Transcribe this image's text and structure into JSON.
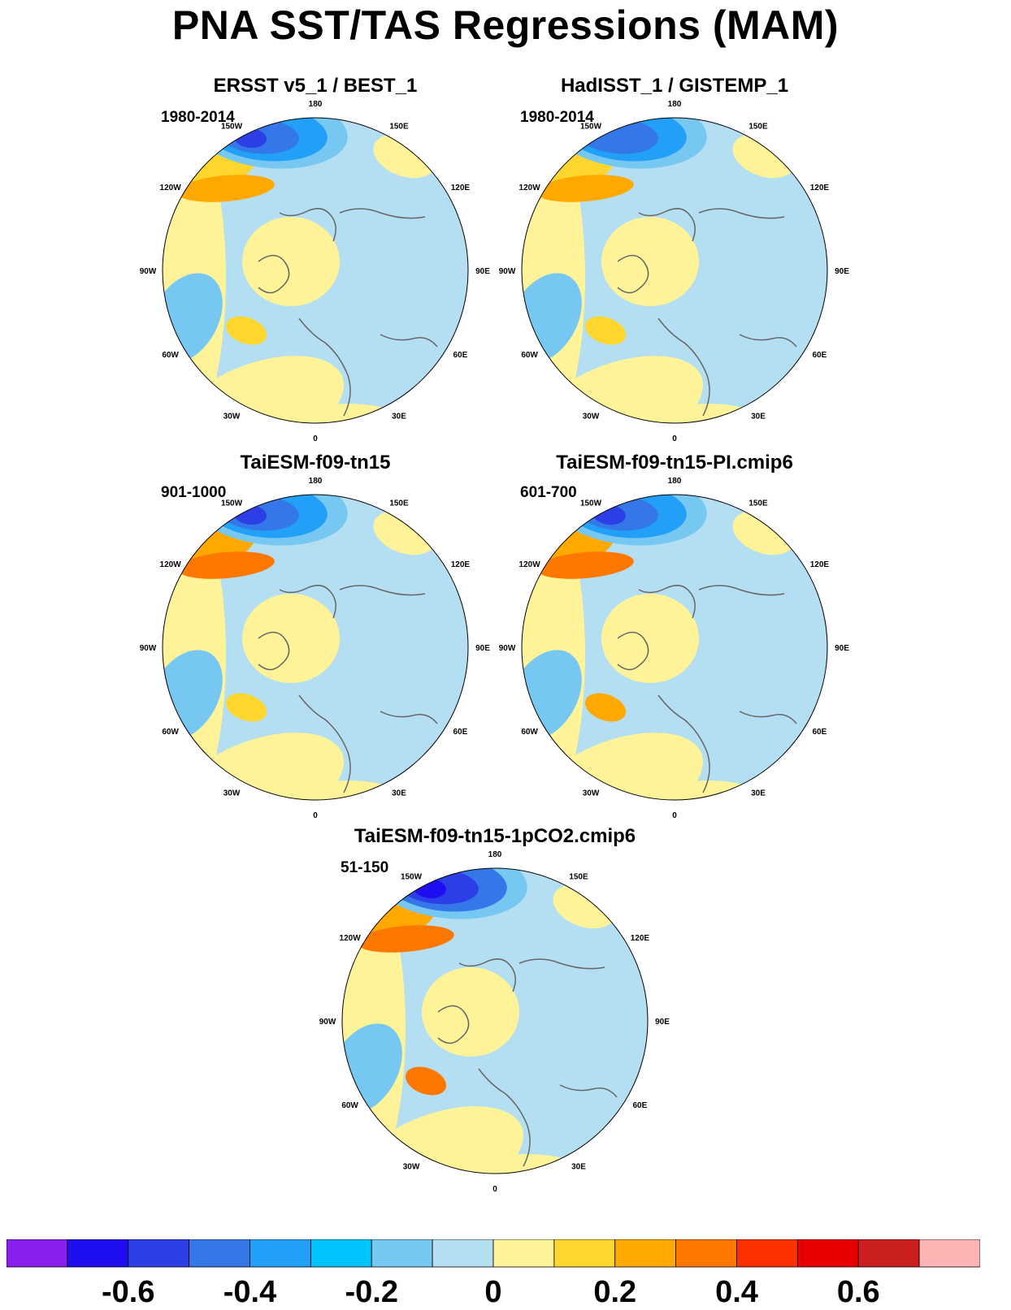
{
  "title": "PNA SST/TAS Regressions (MAM)",
  "panels": [
    {
      "title": "ERSST v5_1 / BEST_1",
      "period": "1980-2014"
    },
    {
      "title": "HadISST_1 / GISTEMP_1",
      "period": "1980-2014"
    },
    {
      "title": "TaiESM-f09-tn15",
      "period": "901-1000"
    },
    {
      "title": "TaiESM-f09-tn15-PI.cmip6",
      "period": "601-700"
    },
    {
      "title": "TaiESM-f09-tn15-1pCO2.cmip6",
      "period": "51-150"
    }
  ],
  "longitude_labels": {
    "180": "180",
    "150E": "150E",
    "120E": "120E",
    "90E": "90E",
    "60E": "60E",
    "30E": "30E",
    "0": "0",
    "30W": "30W",
    "60W": "60W",
    "90W": "90W",
    "120W": "120W",
    "150W": "150W"
  },
  "colorbar": {
    "colors": [
      "#8a1ff0",
      "#1f0ef0",
      "#2c3fe6",
      "#3477e8",
      "#22a0f8",
      "#00c4fc",
      "#76c8f2",
      "#b4def2",
      "#fef398",
      "#fed62e",
      "#fea800",
      "#fe7800",
      "#fe3000",
      "#e80000",
      "#cb1f1f",
      "#feb4b4"
    ],
    "tick_labels": [
      "-0.6",
      "-0.4",
      "-0.2",
      "0",
      "0.2",
      "0.4",
      "0.6"
    ]
  },
  "map_palette": {
    "ocean_neutral_negative": "#b4def2",
    "neutral_positive": "#fef398",
    "weak_negative": "#76c8f2",
    "moderate_negative": "#22a0f8",
    "strong_negative": "#3477e8",
    "very_strong_negative": "#2c3fe6",
    "weak_positive": "#fed62e",
    "moderate_positive": "#fea800",
    "strong_positive": "#fe7800",
    "very_strong_positive": "#e80000",
    "coastline": "#666666"
  }
}
